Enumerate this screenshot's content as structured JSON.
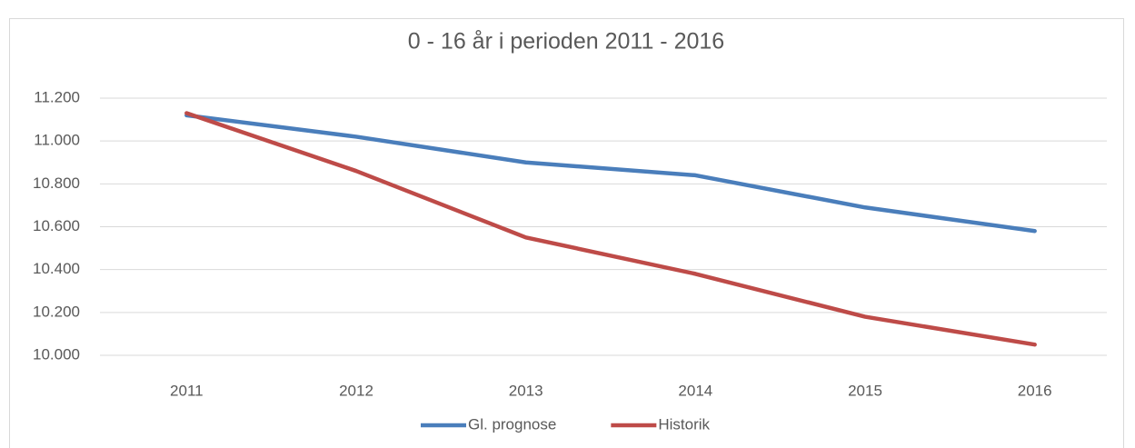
{
  "chart_data": {
    "type": "line",
    "title": "0 - 16 år i perioden 2011 - 2016",
    "categories": [
      "2011",
      "2012",
      "2013",
      "2014",
      "2015",
      "2016"
    ],
    "series": [
      {
        "name": "Gl. prognose",
        "color": "#4a7ebb",
        "values": [
          11120,
          11020,
          10900,
          10840,
          10690,
          10580
        ]
      },
      {
        "name": "Historik",
        "color": "#be4b48",
        "values": [
          11130,
          10860,
          10550,
          10380,
          10180,
          10050
        ]
      }
    ],
    "ylim": [
      10000,
      11200
    ],
    "yticks": [
      {
        "value": 10000,
        "label": "10.000"
      },
      {
        "value": 10200,
        "label": "10.200"
      },
      {
        "value": 10400,
        "label": "10.400"
      },
      {
        "value": 10600,
        "label": "10.600"
      },
      {
        "value": 10800,
        "label": "10.800"
      },
      {
        "value": 11000,
        "label": "11.000"
      },
      {
        "value": 11200,
        "label": "11.200"
      }
    ],
    "grid": true,
    "legend": "bottom"
  }
}
